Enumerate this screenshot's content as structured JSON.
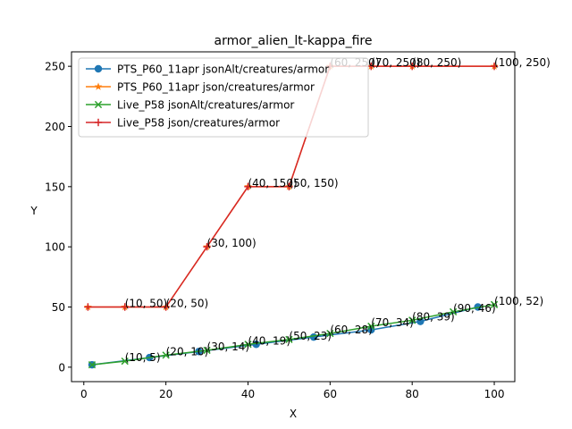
{
  "chart_data": {
    "type": "line",
    "title": "armor_alien_lt-kappa_fire",
    "xlabel": "X",
    "ylabel": "Y",
    "xlim": [
      -3,
      105
    ],
    "ylim": [
      -12,
      262
    ],
    "xticks": [
      0,
      20,
      40,
      60,
      80,
      100
    ],
    "yticks": [
      0,
      50,
      100,
      150,
      200,
      250
    ],
    "grid": false,
    "legend_position": "upper left",
    "series": [
      {
        "name": "PTS_P60_11apr jsonAlt/creatures/armor",
        "color": "#1f77b4",
        "marker": "circle",
        "x": [
          2,
          16,
          28,
          42,
          56,
          70,
          82,
          96
        ],
        "y": [
          2,
          8,
          13,
          19,
          25,
          31,
          38,
          50
        ]
      },
      {
        "name": "PTS_P60_11apr json/creatures/armor",
        "color": "#ff7f0e",
        "marker": "star",
        "x": [
          1,
          10,
          20,
          30,
          40,
          50,
          60,
          70,
          80,
          100
        ],
        "y": [
          50,
          50,
          50,
          100,
          150,
          150,
          250,
          250,
          250,
          250
        ]
      },
      {
        "name": "Live_P58 jsonAlt/creatures/armor",
        "color": "#2ca02c",
        "marker": "x",
        "x": [
          2,
          10,
          20,
          30,
          40,
          50,
          60,
          70,
          80,
          90,
          100
        ],
        "y": [
          2,
          5,
          10,
          14,
          19,
          23,
          28,
          34,
          39,
          46,
          52
        ]
      },
      {
        "name": "Live_P58 json/creatures/armor",
        "color": "#d62728",
        "marker": "plus",
        "x": [
          1,
          10,
          20,
          30,
          40,
          50,
          60,
          70,
          80,
          100
        ],
        "y": [
          50,
          50,
          50,
          100,
          150,
          150,
          250,
          250,
          250,
          250
        ]
      }
    ],
    "annotations": [
      {
        "text": "(10, 50)",
        "x": 10,
        "y": 50
      },
      {
        "text": "(20, 50)",
        "x": 20,
        "y": 50
      },
      {
        "text": "(30, 100)",
        "x": 30,
        "y": 100
      },
      {
        "text": "(40, 150)",
        "x": 40,
        "y": 150
      },
      {
        "text": "(50, 150)",
        "x": 50,
        "y": 150
      },
      {
        "text": "(60, 250)",
        "x": 60,
        "y": 250
      },
      {
        "text": "(70, 250)",
        "x": 70,
        "y": 250
      },
      {
        "text": "(80, 250)",
        "x": 80,
        "y": 250
      },
      {
        "text": "(100, 250)",
        "x": 100,
        "y": 250
      },
      {
        "text": "(10, 5)",
        "x": 10,
        "y": 5
      },
      {
        "text": "(20, 10)",
        "x": 20,
        "y": 10
      },
      {
        "text": "(30, 14)",
        "x": 30,
        "y": 14
      },
      {
        "text": "(40, 19)",
        "x": 40,
        "y": 19
      },
      {
        "text": "(50, 23)",
        "x": 50,
        "y": 23
      },
      {
        "text": "(60, 28)",
        "x": 60,
        "y": 28
      },
      {
        "text": "(70, 34)",
        "x": 70,
        "y": 34
      },
      {
        "text": "(80, 39)",
        "x": 80,
        "y": 39
      },
      {
        "text": "(90, 46)",
        "x": 90,
        "y": 46
      },
      {
        "text": "(100, 52)",
        "x": 100,
        "y": 52
      }
    ]
  }
}
